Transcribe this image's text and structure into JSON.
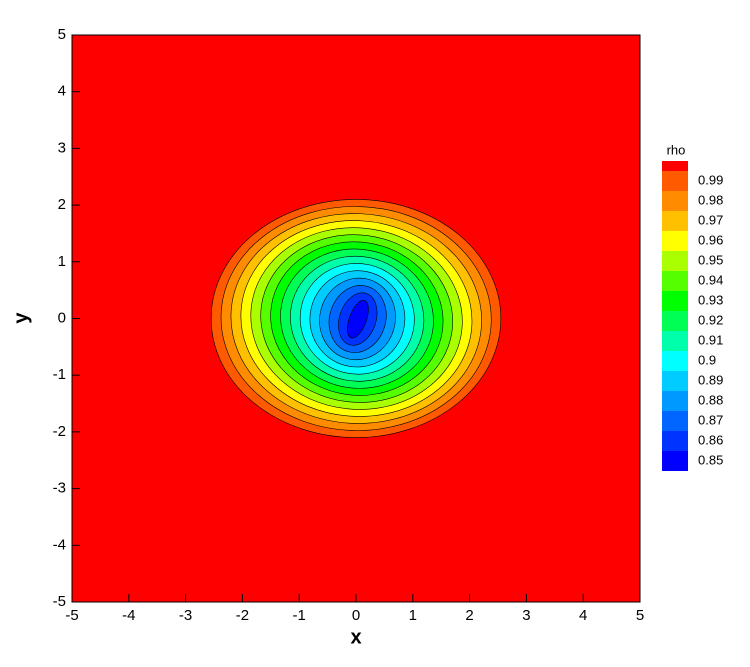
{
  "chart_data": {
    "type": "contour",
    "xlabel": "x",
    "ylabel": "y",
    "xlim": [
      -5,
      5
    ],
    "ylim": [
      -5,
      5
    ],
    "xticks": [
      -5,
      -4,
      -3,
      -2,
      -1,
      0,
      1,
      2,
      3,
      4,
      5
    ],
    "yticks": [
      -5,
      -4,
      -3,
      -2,
      -1,
      0,
      1,
      2,
      3,
      4,
      5
    ],
    "colorbar_title": "rho",
    "levels": [
      0.85,
      0.86,
      0.87,
      0.88,
      0.89,
      0.9,
      0.91,
      0.92,
      0.93,
      0.94,
      0.95,
      0.96,
      0.97,
      0.98,
      0.99
    ],
    "colors": [
      "#0000ff",
      "#0033ff",
      "#0066ff",
      "#0099ff",
      "#00ccff",
      "#00ffff",
      "#00ffaa",
      "#00ff55",
      "#00ff00",
      "#55ff00",
      "#aaff00",
      "#ffff00",
      "#ffc000",
      "#ff8c00",
      "#ff5a00",
      "#ff0000"
    ]
  }
}
